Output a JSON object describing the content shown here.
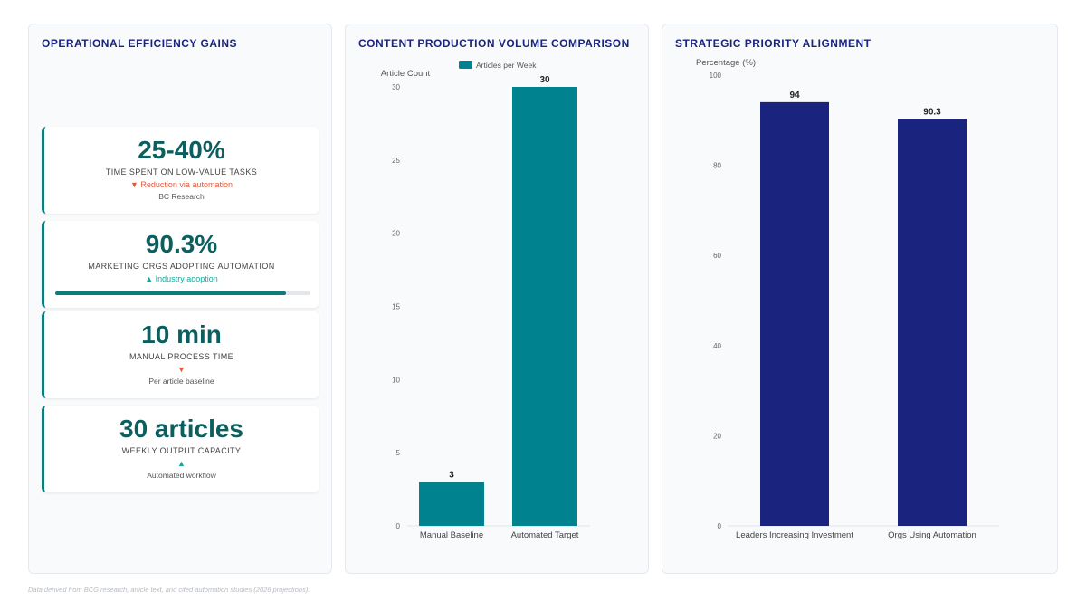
{
  "colors": {
    "teal": "#00838f",
    "navy": "#1a237e",
    "value_text": "#0d5e5e",
    "down": "#e05a3a",
    "up": "#17a89a"
  },
  "left_panel": {
    "title": "OPERATIONAL EFFICIENCY GAINS",
    "cards": [
      {
        "value": "25-40%",
        "label": "TIME SPENT ON LOW-VALUE TASKS",
        "trend": "▼ Reduction via automation",
        "trend_dir": "down",
        "source": "BC Research"
      },
      {
        "value": "90.3%",
        "label": "MARKETING ORGS ADOPTING AUTOMATION",
        "trend": "▲ Industry adoption",
        "trend_dir": "up",
        "progress": 0.903
      },
      {
        "value": "10 min",
        "label": "MANUAL PROCESS TIME",
        "trend": "▼",
        "trend_dir": "down",
        "source": "Per article baseline"
      },
      {
        "value": "30 articles",
        "label": "WEEKLY OUTPUT CAPACITY",
        "trend": "▲",
        "trend_dir": "up",
        "source": "Automated workflow"
      }
    ]
  },
  "chart_data": [
    {
      "type": "bar",
      "title": "CONTENT PRODUCTION VOLUME COMPARISON",
      "categories": [
        "Manual Baseline",
        "Automated Target"
      ],
      "series": [
        {
          "name": "Articles per Week",
          "values": [
            3,
            30
          ]
        }
      ],
      "data_labels": [
        "3",
        "30"
      ],
      "xlabel": "",
      "ylabel": "Article Count",
      "ylim": [
        0,
        30
      ],
      "yticks": [
        0,
        5,
        10,
        15,
        20,
        25,
        30
      ],
      "legend": "top",
      "grid": false,
      "color": "#00838f"
    },
    {
      "type": "bar",
      "title": "STRATEGIC PRIORITY ALIGNMENT",
      "categories": [
        "Leaders Increasing Investment",
        "Orgs Using Automation"
      ],
      "series": [
        {
          "values": [
            94,
            90.3
          ]
        }
      ],
      "data_labels": [
        "94",
        "90.3"
      ],
      "xlabel": "",
      "ylabel": "Percentage (%)",
      "ylim": [
        0,
        100
      ],
      "yticks": [
        0,
        20,
        40,
        60,
        80,
        100
      ],
      "grid": false,
      "color": "#1a237e"
    }
  ],
  "footnote": "Data derived from BCG research, article text, and cited automation studies (2026 projections)."
}
